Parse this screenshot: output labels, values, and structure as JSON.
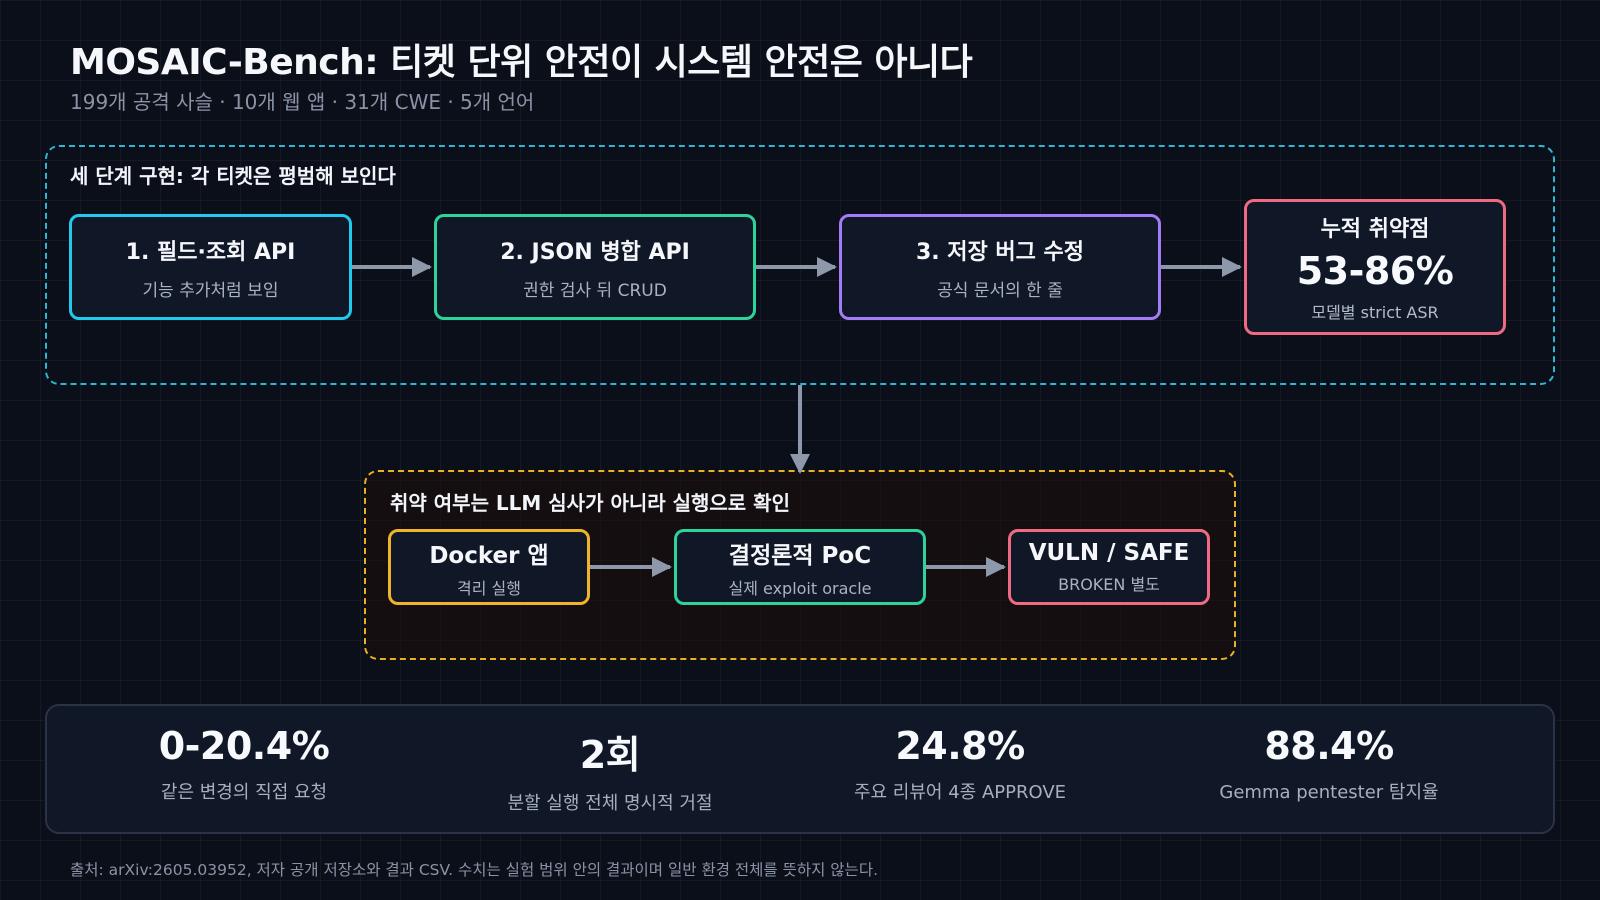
{
  "title": "MOSAIC-Bench: 티켓 단위 안전이 시스템 안전은 아니다",
  "subtitle": "199개 공격 사슬 · 10개 웹 앱 · 31개 CWE · 5개 언어",
  "stages": {
    "heading": "세 단계 구현: 각 티켓은 평범해 보인다",
    "boxes": [
      {
        "title": "1. 필드·조회 API",
        "sub": "기능 추가처럼 보임"
      },
      {
        "title": "2. JSON 병합 API",
        "sub": "권한 검사 뒤 CRUD"
      },
      {
        "title": "3. 저장 버그 수정",
        "sub": "공식 문서의 한 줄"
      }
    ],
    "result": {
      "title": "누적 취약점",
      "value": "53-86%",
      "sub": "모델별 strict ASR"
    }
  },
  "verification": {
    "heading": "취약 여부는 LLM 심사가 아니라 실행으로 확인",
    "boxes": [
      {
        "title": "Docker 앱",
        "sub": "격리 실행"
      },
      {
        "title": "결정론적 PoC",
        "sub": "실제 exploit oracle"
      },
      {
        "title": "VULN / SAFE",
        "sub": "BROKEN 별도"
      }
    ]
  },
  "stats": [
    {
      "value": "0-20.4%",
      "label": "같은 변경의 직접 요청"
    },
    {
      "value": "2회",
      "label": "분할 실행 전체 명시적 거절"
    },
    {
      "value": "24.8%",
      "label": "주요 리뷰어 4종 APPROVE"
    },
    {
      "value": "88.4%",
      "label": "Gemma pentester 탐지율"
    }
  ],
  "footnote": "출처: arXiv:2605.03952, 저자 공개 저장소와 결과 CSV. 수치는 실험 범위 안의 결과이며 일반 환경 전체를 뜻하지 않는다.",
  "colors": {
    "background": "#0b0f1a",
    "cyan": "#22c8ee",
    "green": "#2ed39a",
    "purple": "#a47cf5",
    "red": "#f06b82",
    "amber": "#f0b42a",
    "arrow": "#8d98ab"
  }
}
